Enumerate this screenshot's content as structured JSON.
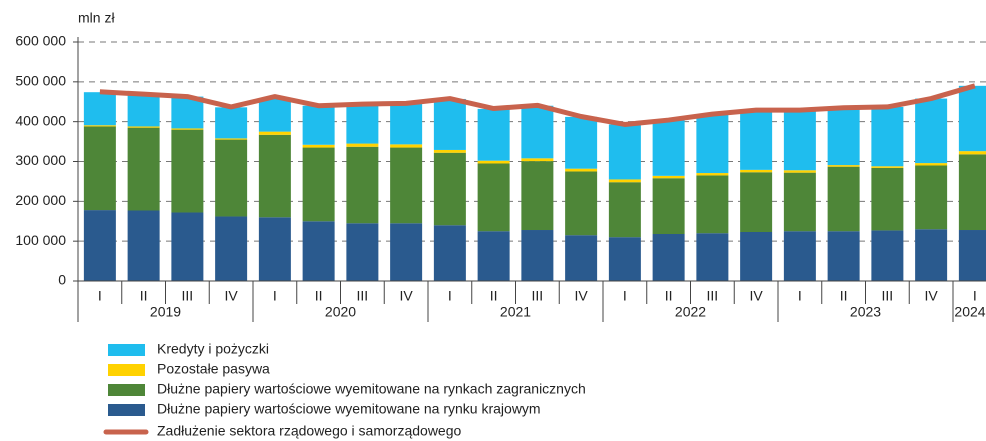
{
  "chart_data": {
    "type": "stacked-bar-line",
    "y_unit_label": "mln zł",
    "categories": [
      "I",
      "II",
      "III",
      "IV",
      "I",
      "II",
      "III",
      "IV",
      "I",
      "II",
      "III",
      "IV",
      "I",
      "II",
      "III",
      "IV",
      "I",
      "II",
      "III",
      "IV",
      "I"
    ],
    "x_groups": [
      "2019",
      "2020",
      "2021",
      "2022",
      "2023",
      "2024"
    ],
    "series": [
      {
        "name": "Kredyty i pożyczki",
        "type": "bar",
        "color": "#1fbdee",
        "values": [
          83000,
          80000,
          80000,
          78000,
          83000,
          98000,
          100000,
          103000,
          128000,
          130000,
          132000,
          130000,
          138000,
          141000,
          148000,
          150000,
          151000,
          144000,
          149000,
          162000,
          164000
        ]
      },
      {
        "name": "Pozostałe pasywa",
        "type": "bar",
        "color": "#ffd200",
        "values": [
          3000,
          3000,
          3000,
          3000,
          8000,
          7000,
          8000,
          8000,
          7000,
          7000,
          7000,
          7000,
          7000,
          6000,
          6000,
          6000,
          6000,
          4000,
          4000,
          6000,
          8000
        ]
      },
      {
        "name": "Dłużne papiery wartościowe wyemitowane na rynkach zagranicznych",
        "type": "bar",
        "color": "#4e8638",
        "values": [
          210000,
          208000,
          208000,
          193000,
          207000,
          185000,
          192000,
          190000,
          182000,
          170000,
          173000,
          160000,
          138000,
          140000,
          145000,
          150000,
          147000,
          162000,
          157000,
          160000,
          190000
        ]
      },
      {
        "name": "Dłużne papiery wartościowe wyemitowane na rynku krajowym",
        "type": "bar",
        "color": "#2a5a8e",
        "values": [
          178000,
          177000,
          172000,
          162000,
          160000,
          150000,
          145000,
          145000,
          140000,
          125000,
          128000,
          115000,
          110000,
          118000,
          120000,
          123000,
          125000,
          125000,
          127000,
          130000,
          128000
        ]
      },
      {
        "name": "Zadłużenie sektora rządowego i samorządowego",
        "type": "line",
        "color": "#c8634d",
        "values": [
          475000,
          469000,
          463000,
          437000,
          463000,
          440000,
          444000,
          446000,
          458000,
          433000,
          441000,
          413000,
          393000,
          404000,
          419000,
          429000,
          429000,
          435000,
          437000,
          458000,
          490000
        ]
      }
    ],
    "ylim": [
      0,
      600000
    ],
    "yticks": [
      0,
      {
        "value": 100000,
        "label": "100 000"
      },
      {
        "value": 200000,
        "label": "200 000"
      },
      {
        "value": 300000,
        "label": "300 000"
      },
      {
        "value": 400000,
        "label": "400 000"
      },
      {
        "value": 500000,
        "label": "500 000"
      },
      {
        "value": 600000,
        "label": "600 000"
      }
    ],
    "grid": true,
    "legend": "bottom"
  }
}
